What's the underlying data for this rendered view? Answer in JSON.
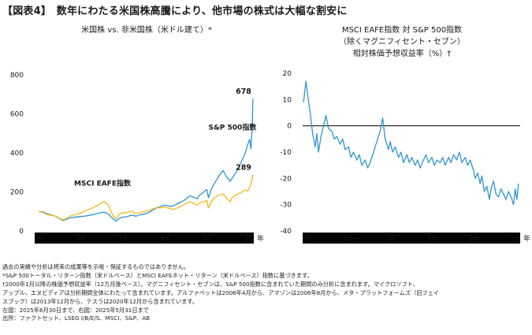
{
  "figure_title": "【図表4】　数年にわたる米国株高騰により、他市場の株式は大幅な割安に",
  "colors": {
    "us_line": "#2f95d1",
    "intl_line": "#f6b81a",
    "axis": "#000000"
  },
  "chart_data": [
    {
      "type": "line",
      "title": "米国株 vs. 非米国株（米ドル建て）*",
      "x_tick_labels": [
        "00",
        "05",
        "10",
        "15",
        "20",
        "25"
      ],
      "x_ticks": [
        2000,
        2005,
        2010,
        2015,
        2020,
        2025
      ],
      "x_unit_label": "年",
      "xlim": [
        1999.5,
        2025.6
      ],
      "y_ticks": [
        0,
        200,
        400,
        600,
        800
      ],
      "ylim": [
        0,
        800
      ],
      "series": [
        {
          "name": "S&P 500指数",
          "color": "#2f95d1",
          "end_label": "678",
          "points": [
            [
              2000,
              100
            ],
            [
              2000.5,
              97
            ],
            [
              2001,
              88
            ],
            [
              2001.5,
              82
            ],
            [
              2002,
              75
            ],
            [
              2002.5,
              63
            ],
            [
              2002.8,
              54
            ],
            [
              2003.2,
              58
            ],
            [
              2003.8,
              68
            ],
            [
              2004.5,
              72
            ],
            [
              2005,
              74
            ],
            [
              2005.5,
              76
            ],
            [
              2006,
              80
            ],
            [
              2006.5,
              84
            ],
            [
              2007,
              90
            ],
            [
              2007.5,
              95
            ],
            [
              2007.8,
              96
            ],
            [
              2008.3,
              86
            ],
            [
              2008.8,
              64
            ],
            [
              2009.2,
              50
            ],
            [
              2009.6,
              65
            ],
            [
              2010,
              71
            ],
            [
              2010.5,
              73
            ],
            [
              2011,
              81
            ],
            [
              2011.6,
              76
            ],
            [
              2012,
              82
            ],
            [
              2012.5,
              86
            ],
            [
              2013,
              93
            ],
            [
              2013.5,
              105
            ],
            [
              2014,
              118
            ],
            [
              2014.5,
              126
            ],
            [
              2015,
              132
            ],
            [
              2015.6,
              126
            ],
            [
              2016,
              128
            ],
            [
              2016.5,
              140
            ],
            [
              2017,
              150
            ],
            [
              2017.5,
              162
            ],
            [
              2018,
              180
            ],
            [
              2018.9,
              165
            ],
            [
              2019,
              178
            ],
            [
              2019.5,
              195
            ],
            [
              2020,
              212
            ],
            [
              2020.2,
              170
            ],
            [
              2020.6,
              220
            ],
            [
              2021,
              250
            ],
            [
              2021.5,
              285
            ],
            [
              2021.95,
              310
            ],
            [
              2022.4,
              275
            ],
            [
              2022.8,
              255
            ],
            [
              2023,
              270
            ],
            [
              2023.5,
              300
            ],
            [
              2024,
              345
            ],
            [
              2024.5,
              390
            ],
            [
              2024.9,
              445
            ],
            [
              2025.1,
              470
            ],
            [
              2025.25,
              420
            ],
            [
              2025.4,
              520
            ],
            [
              2025.5,
              678
            ]
          ]
        },
        {
          "name": "MSCI EAFE指数",
          "color": "#f6b81a",
          "end_label": "289",
          "points": [
            [
              2000,
              100
            ],
            [
              2000.5,
              94
            ],
            [
              2001,
              84
            ],
            [
              2001.5,
              80
            ],
            [
              2002,
              76
            ],
            [
              2002.5,
              65
            ],
            [
              2002.8,
              57
            ],
            [
              2003.2,
              62
            ],
            [
              2003.8,
              78
            ],
            [
              2004.5,
              86
            ],
            [
              2005,
              92
            ],
            [
              2005.5,
              102
            ],
            [
              2006,
              112
            ],
            [
              2006.5,
              120
            ],
            [
              2007,
              132
            ],
            [
              2007.5,
              145
            ],
            [
              2007.8,
              152
            ],
            [
              2008.3,
              130
            ],
            [
              2008.8,
              80
            ],
            [
              2009.2,
              62
            ],
            [
              2009.6,
              88
            ],
            [
              2010,
              92
            ],
            [
              2010.5,
              95
            ],
            [
              2011,
              102
            ],
            [
              2011.6,
              88
            ],
            [
              2012,
              94
            ],
            [
              2012.5,
              98
            ],
            [
              2013,
              104
            ],
            [
              2013.5,
              112
            ],
            [
              2014,
              120
            ],
            [
              2014.5,
              118
            ],
            [
              2015,
              122
            ],
            [
              2015.6,
              115
            ],
            [
              2016,
              110
            ],
            [
              2016.5,
              118
            ],
            [
              2017,
              128
            ],
            [
              2017.5,
              140
            ],
            [
              2018,
              150
            ],
            [
              2018.9,
              132
            ],
            [
              2019,
              140
            ],
            [
              2019.5,
              148
            ],
            [
              2020,
              155
            ],
            [
              2020.2,
              118
            ],
            [
              2020.6,
              155
            ],
            [
              2021,
              172
            ],
            [
              2021.5,
              185
            ],
            [
              2021.95,
              190
            ],
            [
              2022.4,
              165
            ],
            [
              2022.8,
              150
            ],
            [
              2023,
              170
            ],
            [
              2023.5,
              185
            ],
            [
              2024,
              195
            ],
            [
              2024.5,
              210
            ],
            [
              2024.9,
              205
            ],
            [
              2025.1,
              222
            ],
            [
              2025.25,
              238
            ],
            [
              2025.4,
              270
            ],
            [
              2025.5,
              289
            ]
          ]
        }
      ],
      "annotations": [
        {
          "text": "S&P 500指数",
          "x": 2020.2,
          "y": 520
        },
        {
          "text": "MSCI EAFE指数",
          "x": 2004.2,
          "y": 232
        }
      ]
    },
    {
      "type": "line",
      "title_lines": [
        "MSCI EAFE指数 対 S&P 500指数",
        "（除くマグニフィセント・セブン）",
        "相対株価予想収益率（%）†"
      ],
      "x_tick_labels": [
        "00",
        "05",
        "10",
        "15",
        "20",
        "25"
      ],
      "x_ticks": [
        2000,
        2005,
        2010,
        2015,
        2020,
        2025
      ],
      "x_unit_label": "年",
      "xlim": [
        1999.5,
        2025.6
      ],
      "y_ticks": [
        -40,
        -30,
        -20,
        -10,
        0,
        10,
        20
      ],
      "ylim": [
        -40,
        20
      ],
      "reference_line": 0,
      "series": [
        {
          "name": "",
          "color": "#2f95d1",
          "points": [
            [
              1999.6,
              9
            ],
            [
              1999.9,
              17
            ],
            [
              2000.1,
              12
            ],
            [
              2000.4,
              5
            ],
            [
              2000.7,
              -3
            ],
            [
              2001,
              -8
            ],
            [
              2001.2,
              -3
            ],
            [
              2001.4,
              -10
            ],
            [
              2001.7,
              -4
            ],
            [
              2002,
              0
            ],
            [
              2002.3,
              4
            ],
            [
              2002.6,
              -1
            ],
            [
              2003,
              -2
            ],
            [
              2003.3,
              -5
            ],
            [
              2003.6,
              -4
            ],
            [
              2004,
              -7
            ],
            [
              2004.3,
              -5
            ],
            [
              2004.6,
              -9
            ],
            [
              2005,
              -8
            ],
            [
              2005.3,
              -12
            ],
            [
              2005.6,
              -10
            ],
            [
              2006,
              -13
            ],
            [
              2006.3,
              -11
            ],
            [
              2006.6,
              -15
            ],
            [
              2007,
              -13
            ],
            [
              2007.3,
              -16
            ],
            [
              2007.6,
              -14
            ],
            [
              2008,
              -10
            ],
            [
              2008.4,
              -6
            ],
            [
              2008.8,
              -2
            ],
            [
              2009.1,
              3
            ],
            [
              2009.4,
              -5
            ],
            [
              2009.8,
              -9
            ],
            [
              2010,
              -6
            ],
            [
              2010.3,
              -10
            ],
            [
              2010.6,
              -8
            ],
            [
              2011,
              -12
            ],
            [
              2011.3,
              -10
            ],
            [
              2011.6,
              -14
            ],
            [
              2012,
              -11
            ],
            [
              2012.3,
              -14
            ],
            [
              2012.6,
              -12
            ],
            [
              2013,
              -15
            ],
            [
              2013.3,
              -13
            ],
            [
              2013.6,
              -16
            ],
            [
              2014,
              -13
            ],
            [
              2014.3,
              -11
            ],
            [
              2014.6,
              -14
            ],
            [
              2015,
              -12
            ],
            [
              2015.3,
              -15
            ],
            [
              2015.6,
              -13
            ],
            [
              2016,
              -14
            ],
            [
              2016.3,
              -12
            ],
            [
              2016.6,
              -15
            ],
            [
              2017,
              -12
            ],
            [
              2017.3,
              -14
            ],
            [
              2017.6,
              -11
            ],
            [
              2018,
              -13
            ],
            [
              2018.3,
              -10
            ],
            [
              2018.6,
              -14
            ],
            [
              2019,
              -12
            ],
            [
              2019.3,
              -15
            ],
            [
              2019.6,
              -13
            ],
            [
              2020,
              -17
            ],
            [
              2020.2,
              -20
            ],
            [
              2020.5,
              -18
            ],
            [
              2020.8,
              -22
            ],
            [
              2021,
              -19
            ],
            [
              2021.3,
              -25
            ],
            [
              2021.6,
              -23
            ],
            [
              2021.9,
              -28
            ],
            [
              2022.1,
              -24
            ],
            [
              2022.4,
              -21
            ],
            [
              2022.7,
              -26
            ],
            [
              2023,
              -27
            ],
            [
              2023.3,
              -24
            ],
            [
              2023.6,
              -26
            ],
            [
              2023.9,
              -28
            ],
            [
              2024.2,
              -25
            ],
            [
              2024.5,
              -27
            ],
            [
              2024.8,
              -30
            ],
            [
              2025,
              -24
            ],
            [
              2025.2,
              -28
            ],
            [
              2025.4,
              -22
            ]
          ]
        }
      ]
    }
  ],
  "notes": [
    "過去の実績や分析は将来の成果等を示唆・保証するものではありません。",
    "*S&P 500トータル・リターン指数（米ドルベース）とMSCI EAFEネット・リターン（米ドルベース）指数に基づきます。",
    "†2000年1月以降の株価予想収益率（12カ月後ベース）。マグニフィセント・セブンは、S&P 500指数に含まれていた期間のみ分析に含まれます。マイクロソフト、",
    "アップル、エヌビディアは分析期間全体にわたって含まれています。アルファベットは2006年4月から、アマゾンは2006年8月から、メタ・プラットフォームズ（旧フェイ",
    "スブック）は2013年12月から、テスラは2020年12月から含まれています。",
    "左図：2025年6月30日まで、右図：2025年5月31日まで",
    "出所：ファクトセット、LSEG I/B/E/S、MSCI、S&P、AB"
  ]
}
